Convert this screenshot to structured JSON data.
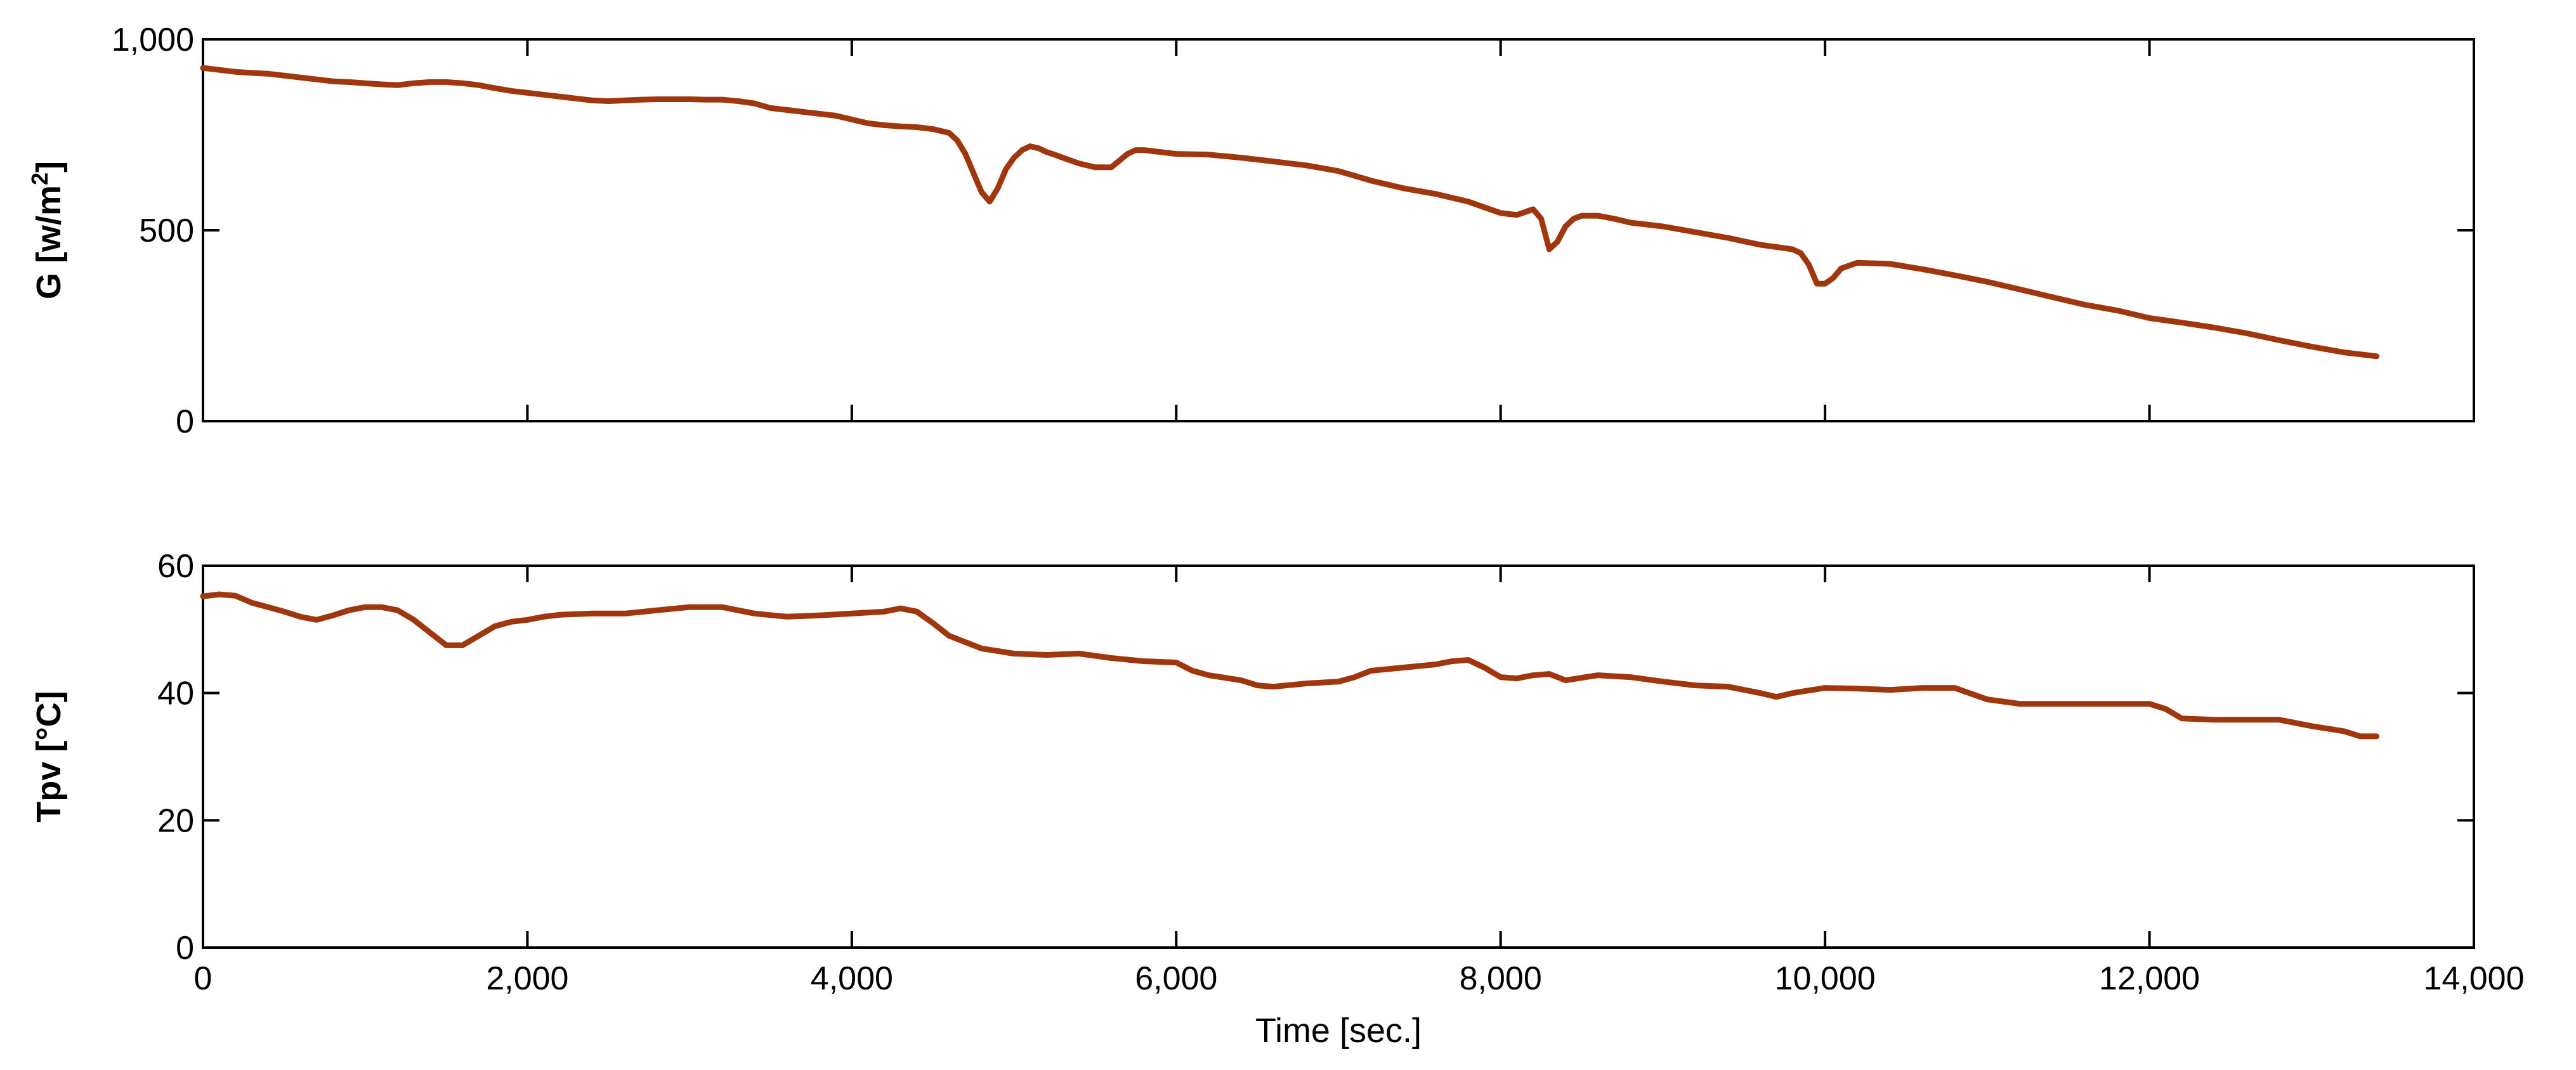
{
  "chart_data": [
    {
      "type": "line",
      "ylabel": "G [w/m",
      "ylabel_sup": "2",
      "ylabel_end": "]",
      "ylim": [
        0,
        1000
      ],
      "xlim": [
        0,
        14000
      ],
      "yticks": [
        0,
        500,
        1000
      ],
      "ytick_labels": [
        "0",
        "500",
        "1,000"
      ],
      "xticks": [
        0,
        2000,
        4000,
        6000,
        8000,
        10000,
        12000,
        14000
      ],
      "series": [
        {
          "color": "#a0360e",
          "x": [
            0,
            100,
            200,
            300,
            400,
            500,
            600,
            700,
            800,
            900,
            1000,
            1100,
            1200,
            1300,
            1400,
            1500,
            1600,
            1700,
            1800,
            1900,
            2000,
            2100,
            2200,
            2300,
            2400,
            2500,
            2600,
            2700,
            2800,
            2900,
            3000,
            3100,
            3200,
            3300,
            3400,
            3500,
            3600,
            3700,
            3800,
            3900,
            4000,
            4100,
            4200,
            4300,
            4400,
            4500,
            4600,
            4650,
            4700,
            4750,
            4800,
            4850,
            4900,
            4950,
            5000,
            5050,
            5100,
            5150,
            5200,
            5250,
            5300,
            5400,
            5500,
            5600,
            5700,
            5750,
            5800,
            5900,
            6000,
            6200,
            6400,
            6600,
            6800,
            7000,
            7200,
            7400,
            7600,
            7800,
            7900,
            8000,
            8100,
            8200,
            8250,
            8300,
            8350,
            8400,
            8450,
            8500,
            8600,
            8700,
            8800,
            9000,
            9200,
            9400,
            9600,
            9800,
            9850,
            9900,
            9950,
            10000,
            10050,
            10100,
            10200,
            10400,
            10600,
            10800,
            11000,
            11200,
            11400,
            11600,
            11800,
            12000,
            12200,
            12400,
            12600,
            12800,
            13000,
            13200,
            13400
          ],
          "values": [
            925,
            920,
            915,
            912,
            910,
            905,
            900,
            895,
            890,
            888,
            885,
            882,
            880,
            885,
            888,
            888,
            885,
            880,
            872,
            865,
            860,
            855,
            850,
            845,
            840,
            838,
            840,
            842,
            843,
            843,
            843,
            842,
            842,
            838,
            832,
            820,
            815,
            810,
            805,
            800,
            790,
            780,
            775,
            772,
            770,
            765,
            755,
            735,
            700,
            650,
            600,
            575,
            610,
            660,
            690,
            710,
            720,
            715,
            705,
            698,
            690,
            675,
            665,
            665,
            700,
            710,
            710,
            705,
            700,
            698,
            690,
            680,
            670,
            655,
            630,
            610,
            595,
            575,
            560,
            545,
            540,
            555,
            530,
            450,
            470,
            510,
            530,
            538,
            538,
            530,
            520,
            510,
            495,
            480,
            462,
            450,
            440,
            410,
            360,
            360,
            375,
            400,
            415,
            412,
            398,
            382,
            365,
            345,
            325,
            305,
            290,
            270,
            258,
            245,
            230,
            212,
            195,
            180,
            170
          ]
        }
      ]
    },
    {
      "type": "line",
      "ylabel": "Tpv [°C]",
      "xlabel": "Time [sec.]",
      "ylim": [
        0,
        60
      ],
      "xlim": [
        0,
        14000
      ],
      "yticks": [
        0,
        20,
        40,
        60
      ],
      "ytick_labels": [
        "0",
        "20",
        "40",
        "60"
      ],
      "xticks": [
        0,
        2000,
        4000,
        6000,
        8000,
        10000,
        12000,
        14000
      ],
      "xtick_labels": [
        "0",
        "2,000",
        "4,000",
        "6,000",
        "8,000",
        "10,000",
        "12,000",
        "14,000"
      ],
      "series": [
        {
          "color": "#a0360e",
          "x": [
            0,
            100,
            200,
            300,
            400,
            500,
            600,
            700,
            800,
            900,
            1000,
            1100,
            1200,
            1300,
            1400,
            1500,
            1600,
            1700,
            1800,
            1900,
            2000,
            2100,
            2200,
            2400,
            2600,
            2800,
            3000,
            3200,
            3400,
            3600,
            3800,
            4000,
            4200,
            4300,
            4400,
            4500,
            4600,
            4700,
            4800,
            5000,
            5200,
            5400,
            5600,
            5800,
            6000,
            6100,
            6200,
            6400,
            6500,
            6600,
            6800,
            7000,
            7100,
            7200,
            7400,
            7600,
            7700,
            7800,
            7900,
            8000,
            8100,
            8200,
            8300,
            8400,
            8600,
            8800,
            9000,
            9200,
            9400,
            9600,
            9700,
            9800,
            10000,
            10200,
            10400,
            10600,
            10800,
            11000,
            11200,
            11400,
            11600,
            11800,
            12000,
            12100,
            12200,
            12400,
            12600,
            12800,
            13000,
            13200,
            13300,
            13400
          ],
          "values": [
            55.2,
            55.5,
            55.3,
            54.2,
            53.5,
            52.8,
            52.0,
            51.5,
            52.2,
            53.0,
            53.5,
            53.5,
            53.0,
            51.5,
            49.5,
            47.5,
            47.5,
            49.0,
            50.5,
            51.2,
            51.5,
            52.0,
            52.3,
            52.5,
            52.5,
            53.0,
            53.5,
            53.5,
            52.5,
            52.0,
            52.2,
            52.5,
            52.8,
            53.3,
            52.8,
            51.0,
            49.0,
            48.0,
            47.0,
            46.2,
            46.0,
            46.2,
            45.5,
            45.0,
            44.8,
            43.5,
            42.8,
            42.0,
            41.2,
            41.0,
            41.5,
            41.8,
            42.5,
            43.5,
            44.0,
            44.5,
            45.0,
            45.2,
            44.0,
            42.5,
            42.3,
            42.8,
            43.0,
            42.0,
            42.8,
            42.5,
            41.8,
            41.2,
            41.0,
            40.0,
            39.4,
            40.0,
            40.8,
            40.7,
            40.5,
            40.8,
            40.8,
            39.0,
            38.3,
            38.3,
            38.3,
            38.3,
            38.3,
            37.5,
            36.0,
            35.8,
            35.8,
            35.8,
            34.8,
            34.0,
            33.2,
            33.2
          ]
        }
      ]
    }
  ]
}
